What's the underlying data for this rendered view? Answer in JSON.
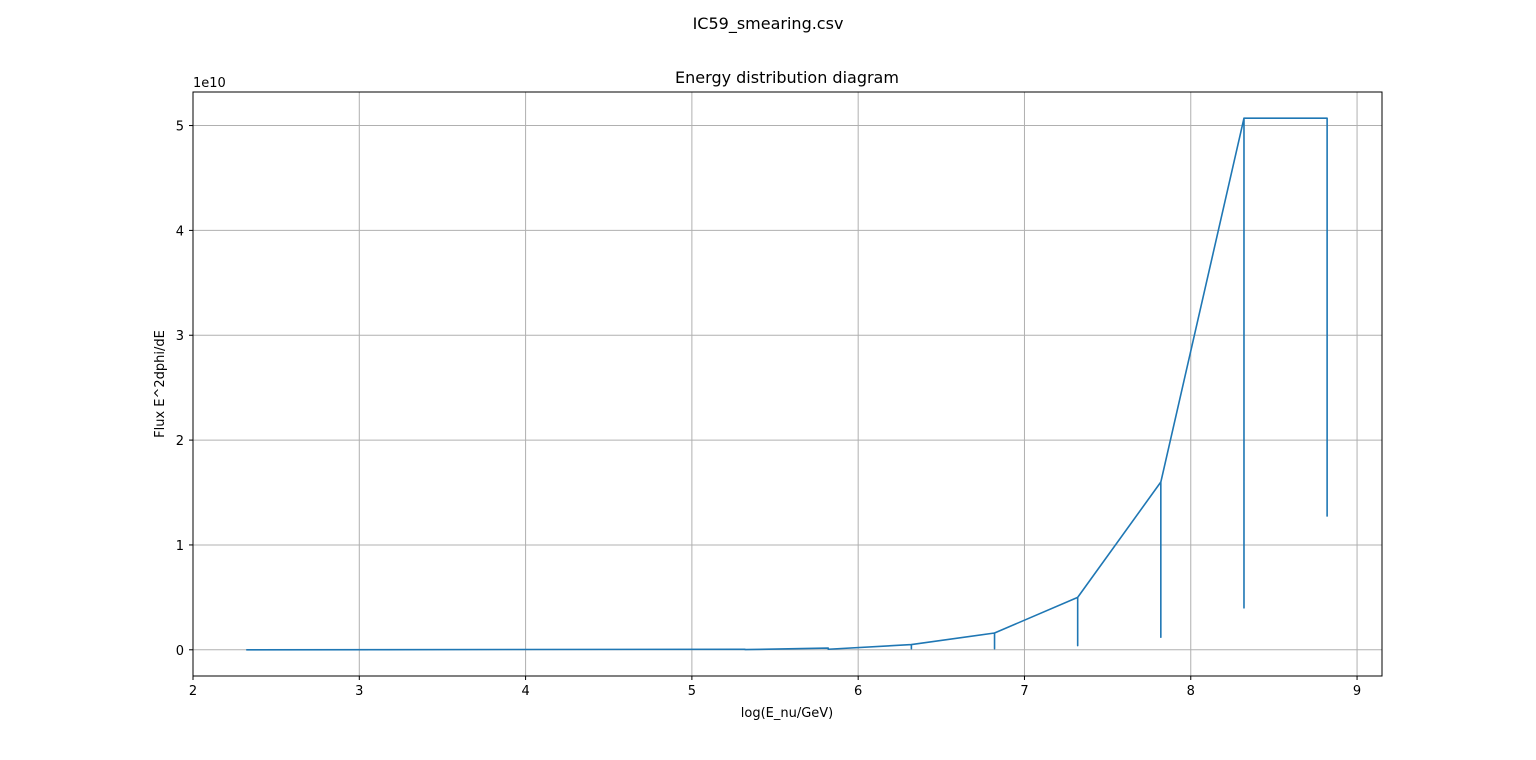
{
  "figure": {
    "suptitle": "IC59_smearing.csv"
  },
  "chart_data": {
    "type": "line",
    "title": "Energy distribution diagram",
    "xlabel": "log(E_nu/GeV)",
    "ylabel": "Flux E^2dphi/dE",
    "y_offset_label": "1e10",
    "xlim": [
      2.0,
      9.15
    ],
    "ylim": [
      -2.5,
      53.2
    ],
    "y_unit_scale": 10000000000.0,
    "grid": true,
    "x_ticks": [
      2,
      3,
      4,
      5,
      6,
      7,
      8,
      9
    ],
    "x_tick_labels": [
      "2",
      "3",
      "4",
      "5",
      "6",
      "7",
      "8",
      "9"
    ],
    "y_ticks": [
      0,
      10,
      20,
      30,
      40,
      50
    ],
    "y_tick_labels": [
      "0",
      "1",
      "2",
      "3",
      "4",
      "5"
    ],
    "line_color": "#1f77b4",
    "series": [
      {
        "x": [
          2.32,
          5.32,
          5.32,
          5.82,
          5.82,
          6.32,
          6.32,
          6.32,
          6.82,
          6.82,
          6.82,
          6.82,
          7.32,
          7.32,
          7.32,
          7.32,
          7.82,
          7.82,
          7.82,
          7.82,
          8.32,
          8.32,
          8.32,
          8.32,
          8.82,
          8.82,
          8.82
        ],
        "y": [
          0.0,
          0.05,
          0.02,
          0.16,
          0.05,
          0.5,
          0.1,
          0.5,
          1.6,
          0.1,
          0.4,
          1.6,
          5.0,
          0.4,
          1.2,
          5.0,
          16.0,
          1.2,
          3.9,
          16.0,
          50.7,
          4.0,
          12.7,
          50.7,
          50.7,
          12.7,
          12.7
        ]
      }
    ]
  }
}
